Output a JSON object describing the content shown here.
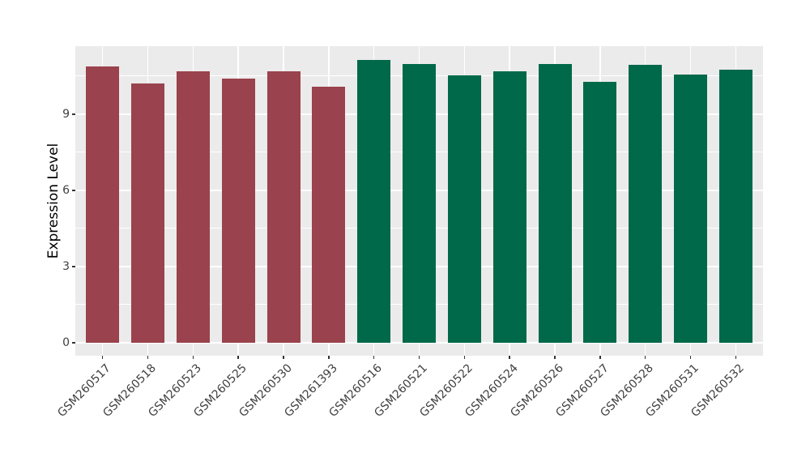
{
  "figure": {
    "background": "#FFFFFF"
  },
  "chart_data": {
    "type": "bar",
    "title": "",
    "xlabel": "",
    "ylabel": "Expression Level",
    "categories": [
      "GSM260517",
      "GSM260518",
      "GSM260523",
      "GSM260525",
      "GSM260530",
      "GSM261393",
      "GSM260516",
      "GSM260521",
      "GSM260522",
      "GSM260524",
      "GSM260526",
      "GSM260527",
      "GSM260528",
      "GSM260531",
      "GSM260532"
    ],
    "values": [
      10.88,
      10.2,
      10.68,
      10.39,
      10.68,
      10.09,
      11.14,
      10.99,
      10.53,
      10.68,
      10.98,
      10.28,
      10.95,
      10.55,
      10.75
    ],
    "bar_groups": [
      0,
      0,
      0,
      0,
      0,
      0,
      1,
      1,
      1,
      1,
      1,
      1,
      1,
      1,
      1
    ],
    "group_colors": [
      "#9A424D",
      "#006949"
    ],
    "yticks": [
      0,
      3,
      6,
      9
    ],
    "minor_gridlines": [
      1.5,
      4.5,
      7.5,
      10.5
    ],
    "ylim": [
      0,
      11.68
    ],
    "x_label_angle": 45,
    "legend_position": "none",
    "grid": true,
    "panel_background": "#EBEBEB",
    "grid_color": "#FFFFFF",
    "axis_text_color": "#404040",
    "axis_title_color": "#000000"
  }
}
